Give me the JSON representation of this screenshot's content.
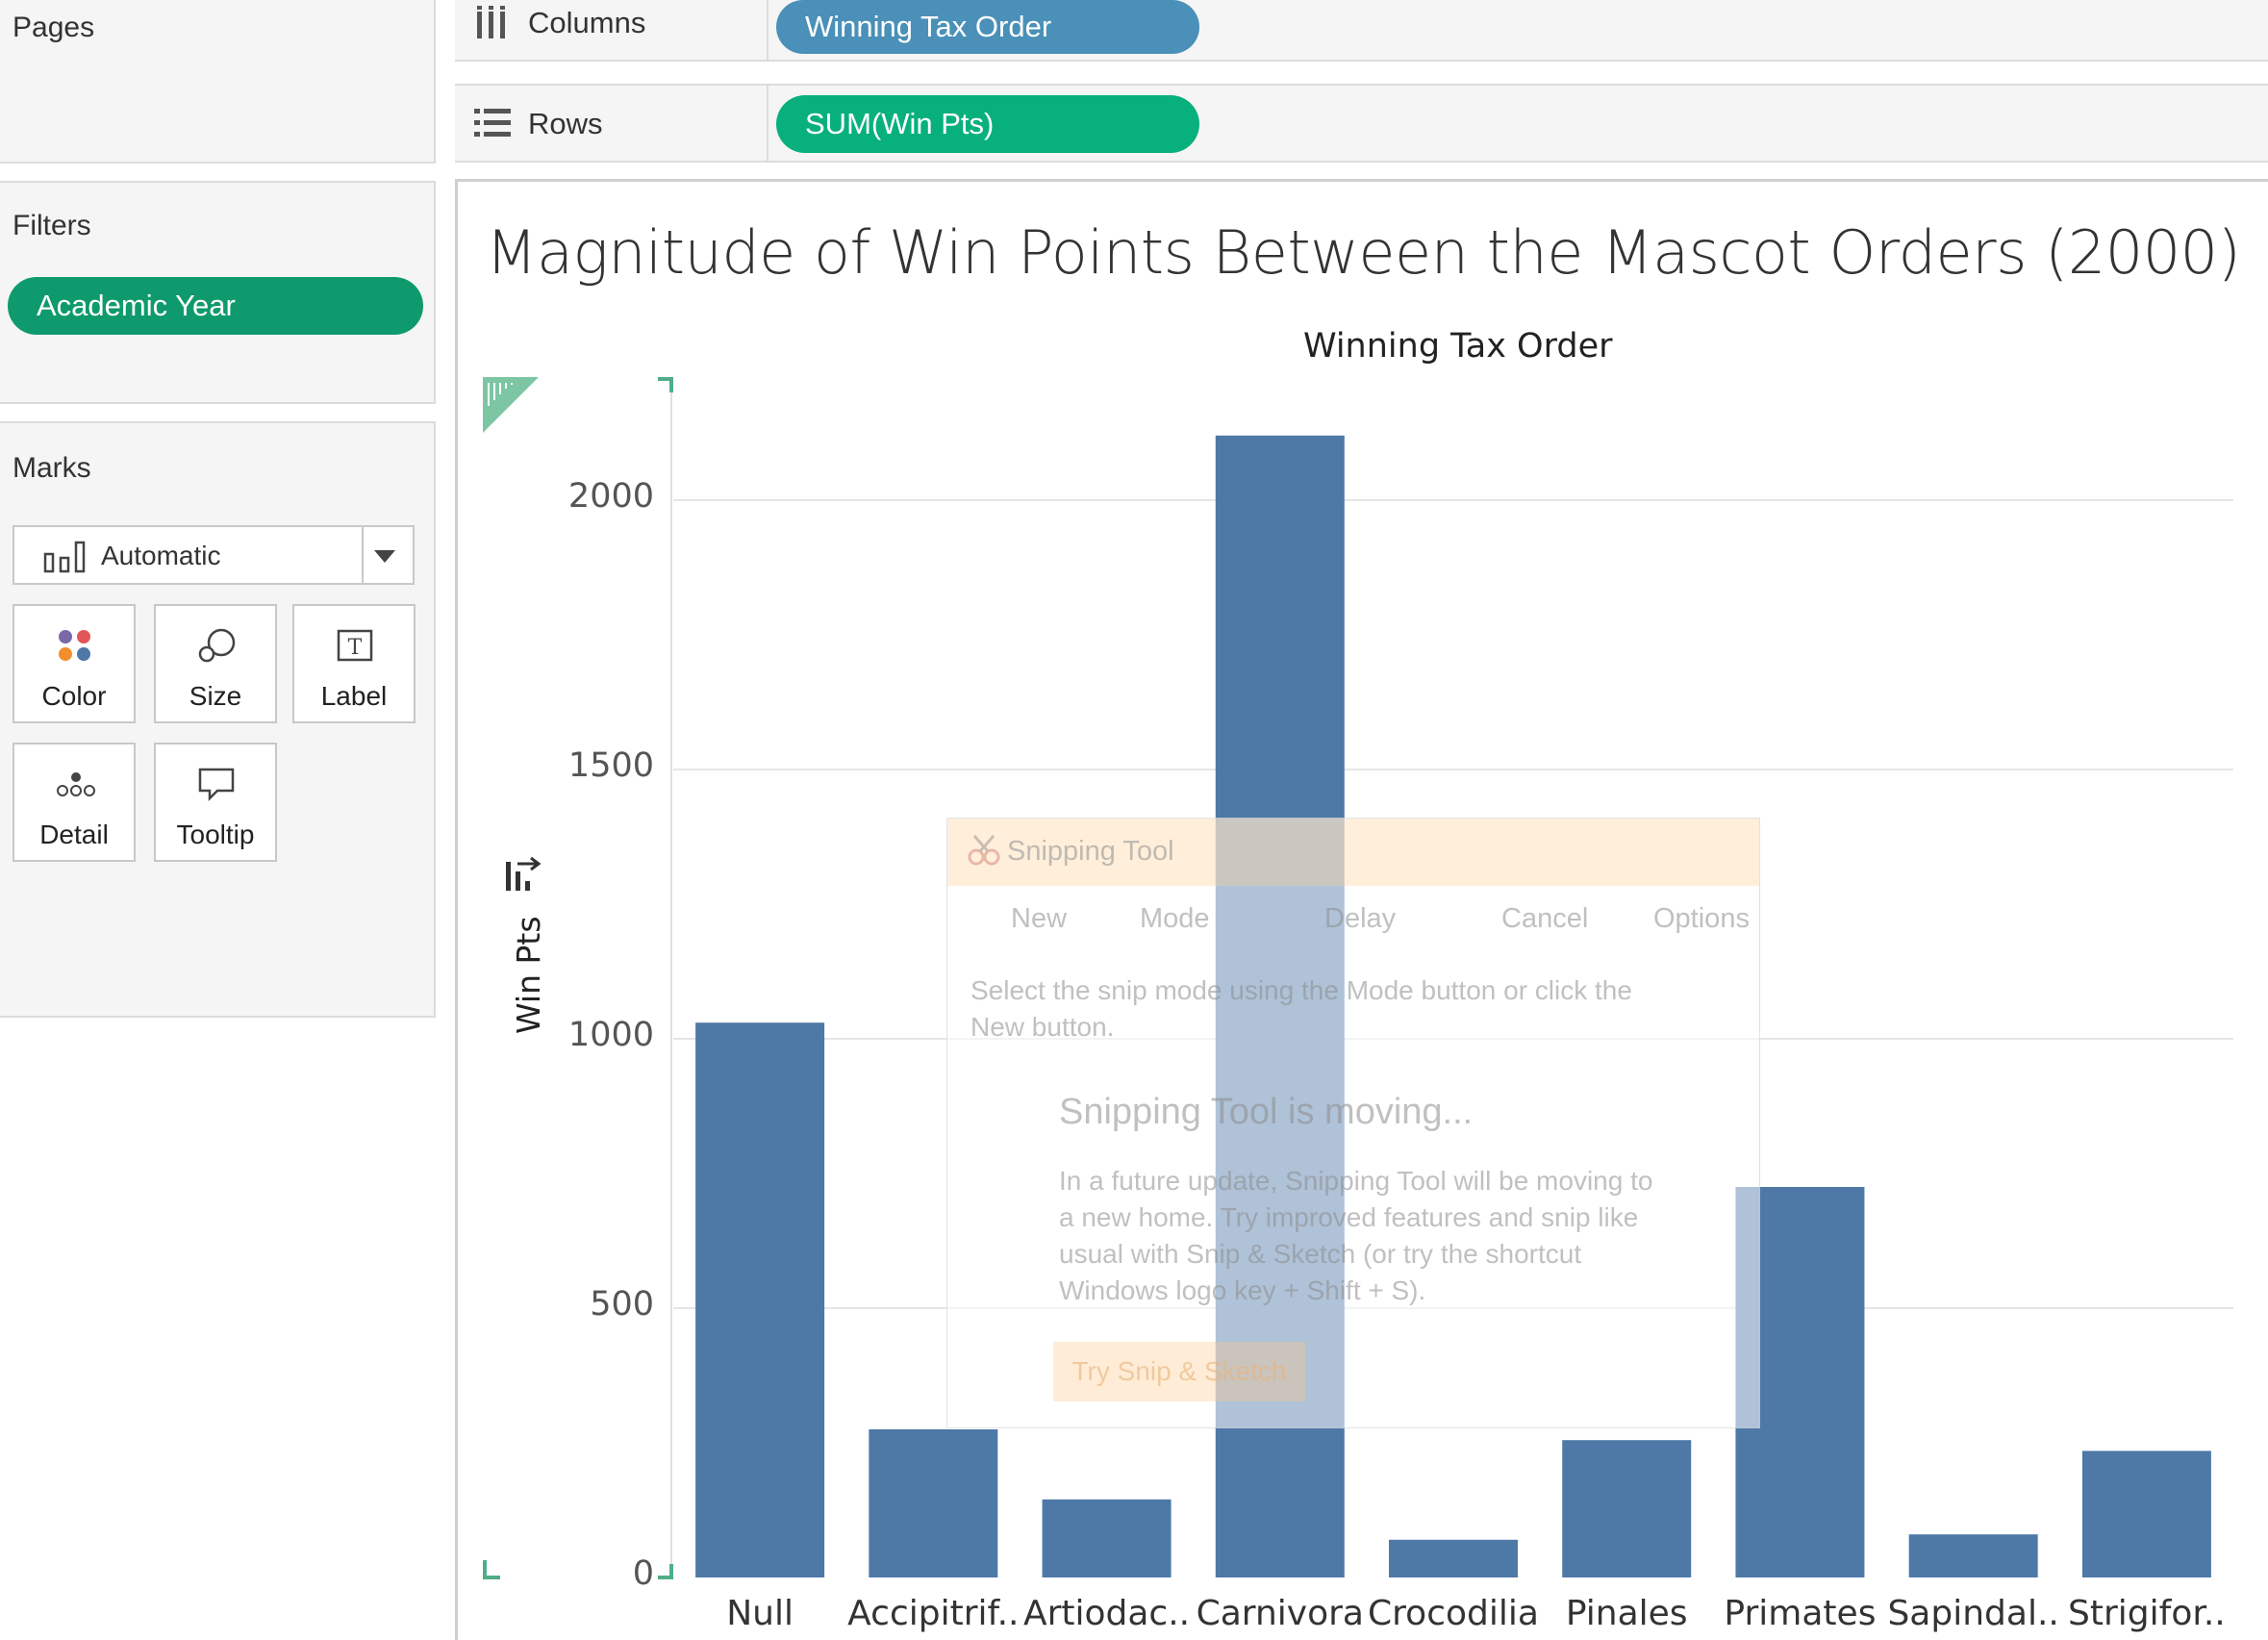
{
  "pages": {
    "title": "Pages"
  },
  "filters": {
    "title": "Filters",
    "pill": "Academic Year"
  },
  "marks": {
    "title": "Marks",
    "type": "Automatic",
    "buttons": {
      "color": "Color",
      "size": "Size",
      "label": "Label",
      "detail": "Detail",
      "tooltip": "Tooltip"
    }
  },
  "shelves": {
    "columns": {
      "label": "Columns",
      "pill": "Winning Tax Order"
    },
    "rows": {
      "label": "Rows",
      "pill": "SUM(Win Pts)"
    }
  },
  "sheet": {
    "title": "Magnitude of Win Points Between the Mascot Orders (2000)"
  },
  "chart_data": {
    "type": "bar",
    "x_header": "Winning Tax Order",
    "ylabel": "Win Pts",
    "categories": [
      "Null",
      "Accipitrif..",
      "Artiodac..",
      "Carnivora",
      "Crocodilia",
      "Pinales",
      "Primates",
      "Sapindal..",
      "Strigifor.."
    ],
    "values": [
      1030,
      275,
      145,
      2120,
      70,
      255,
      725,
      80,
      235
    ],
    "y_ticks": [
      "0",
      "500",
      "1000",
      "1500",
      "2000"
    ],
    "ylim": [
      0,
      2200
    ],
    "bar_color": "#4e79a7",
    "grid": true
  },
  "snipping_tool": {
    "title": "Snipping Tool",
    "toolbar": {
      "new": "New",
      "mode": "Mode",
      "delay": "Delay",
      "cancel": "Cancel",
      "options": "Options"
    },
    "instruction": "Select the snip mode using the Mode button or click the New button.",
    "heading": "Snipping Tool is moving...",
    "paragraph": "In a future update, Snipping Tool will be moving to a new home. Try improved features and snip like usual with Snip & Sketch (or try the shortcut Windows logo key + Shift + S).",
    "button": "Try Snip & Sketch"
  }
}
